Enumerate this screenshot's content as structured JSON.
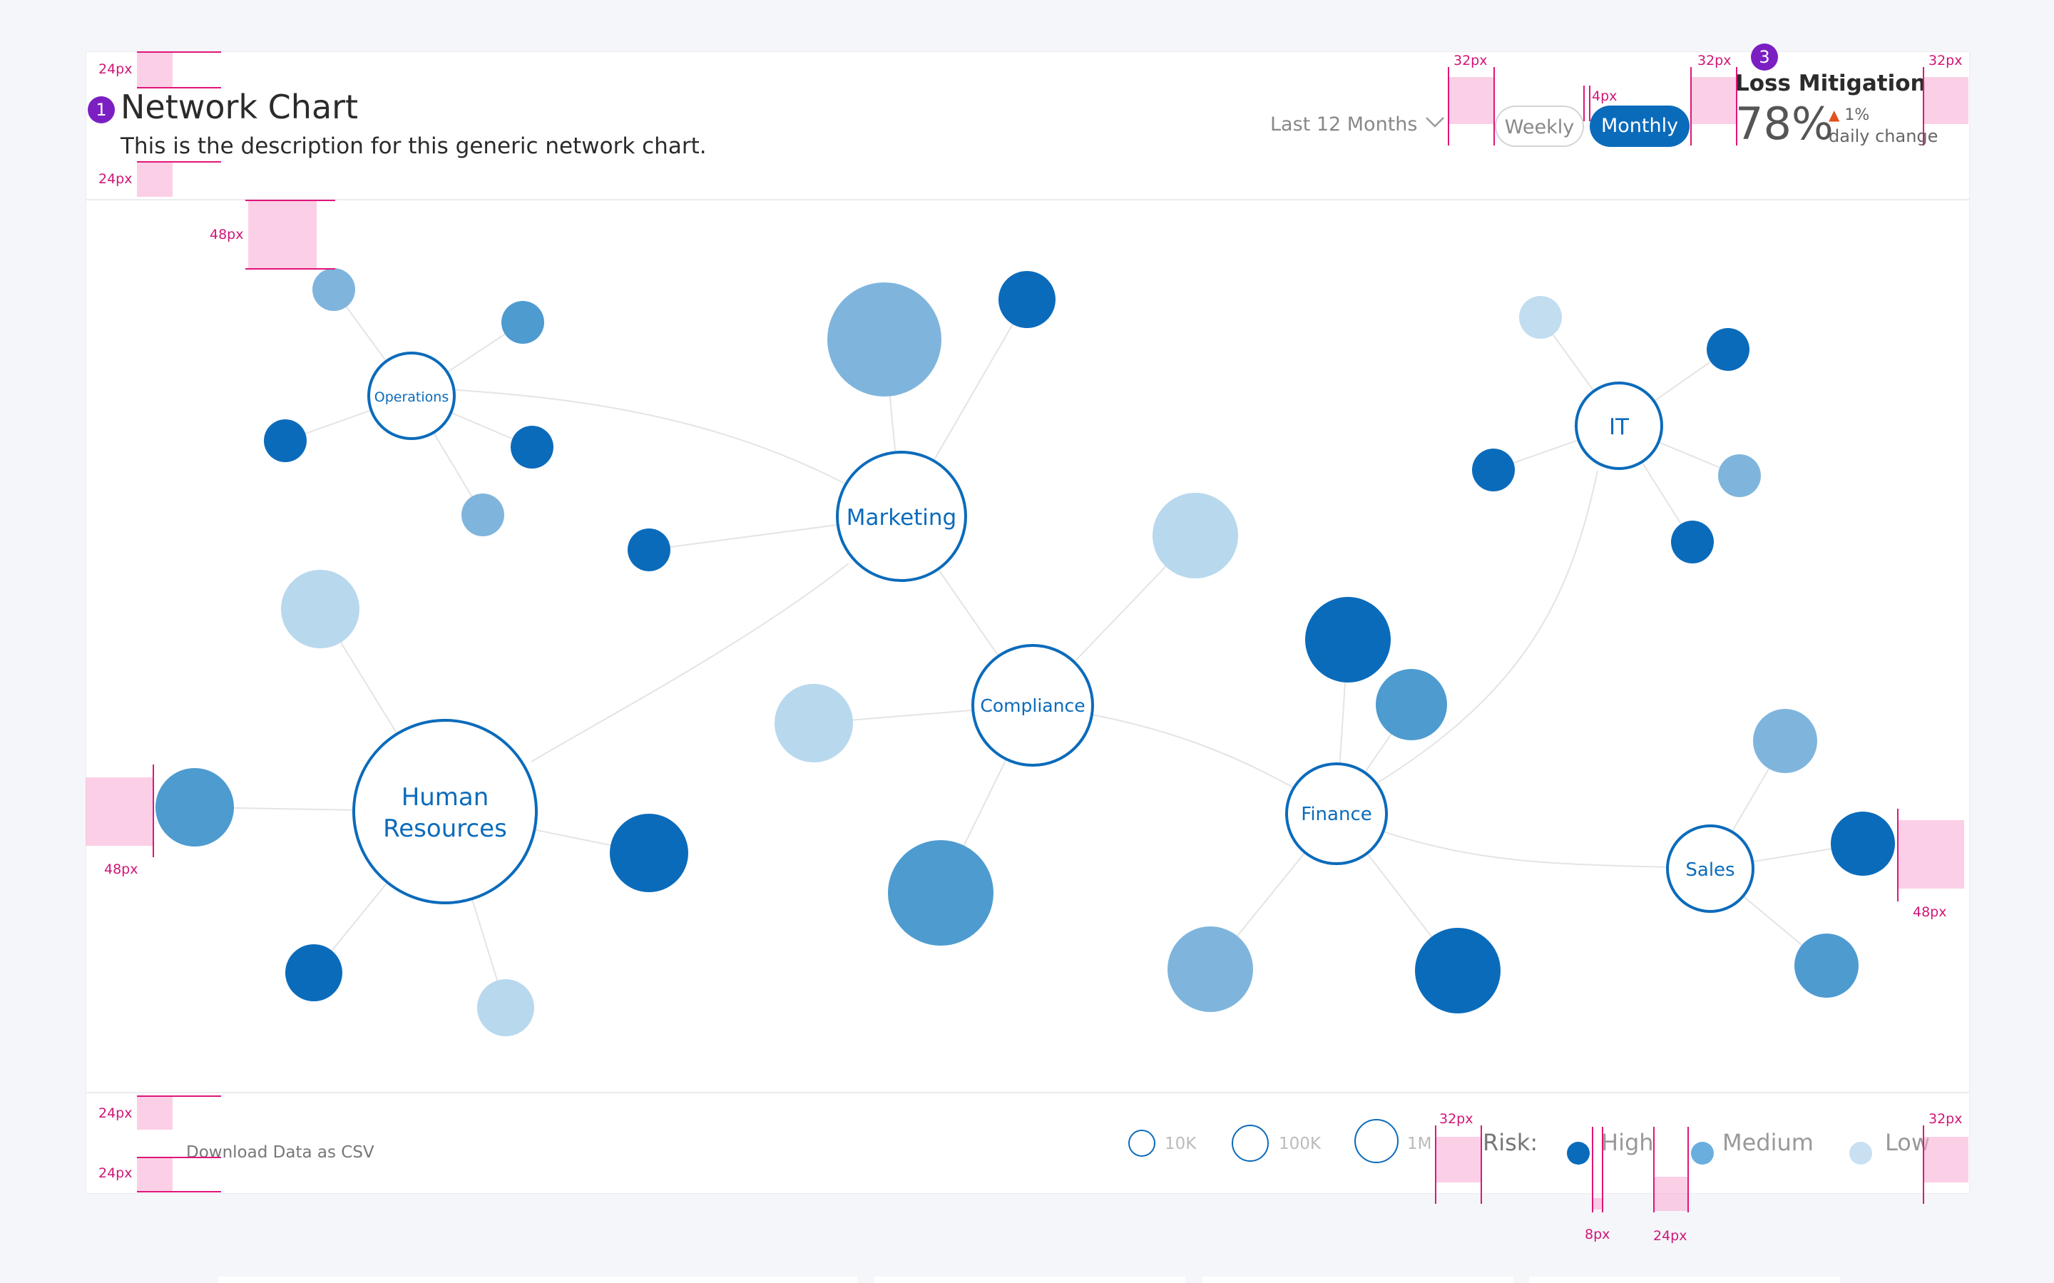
{
  "header": {
    "title": "Network Chart",
    "description": "This is the description for this generic network chart.",
    "title_badge": "1",
    "period_select": "Last 12 Months",
    "toggle": {
      "weekly": "Weekly",
      "monthly": "Monthly",
      "selected": "Monthly"
    },
    "kpi": {
      "badge": "3",
      "title": "Loss Mitigation",
      "value": "78%",
      "change": "1%",
      "change_label": "daily change"
    }
  },
  "network": {
    "hubs": [
      {
        "label": "Operations"
      },
      {
        "label": "Marketing"
      },
      {
        "label": "IT"
      },
      {
        "label": "Compliance"
      },
      {
        "label": "Human Resources",
        "label_line1": "Human",
        "label_line2": "Resources"
      },
      {
        "label": "Finance"
      },
      {
        "label": "Sales"
      }
    ]
  },
  "footer": {
    "download_label": "Download Data as CSV",
    "size_legend": [
      "10K",
      "100K",
      "1M"
    ],
    "risk_title": "Risk:",
    "risk_levels": [
      {
        "label": "High",
        "color": "#0b6bbb"
      },
      {
        "label": "Medium",
        "color": "#6aaedd"
      },
      {
        "label": "Low",
        "color": "#c2ddf0"
      }
    ]
  },
  "spec_annotations": [
    "24px",
    "24px",
    "48px",
    "48px",
    "48px",
    "32px",
    "4px",
    "32px",
    "32px",
    "24px",
    "24px",
    "32px",
    "8px",
    "24px",
    "32px"
  ],
  "colors": {
    "primary": "#0b6bbb",
    "high": "#0b6bbb",
    "medium": "#4e9bd0",
    "low": "#b8d8ee",
    "badge": "#7b1fc2",
    "spec": "#e0157a"
  }
}
